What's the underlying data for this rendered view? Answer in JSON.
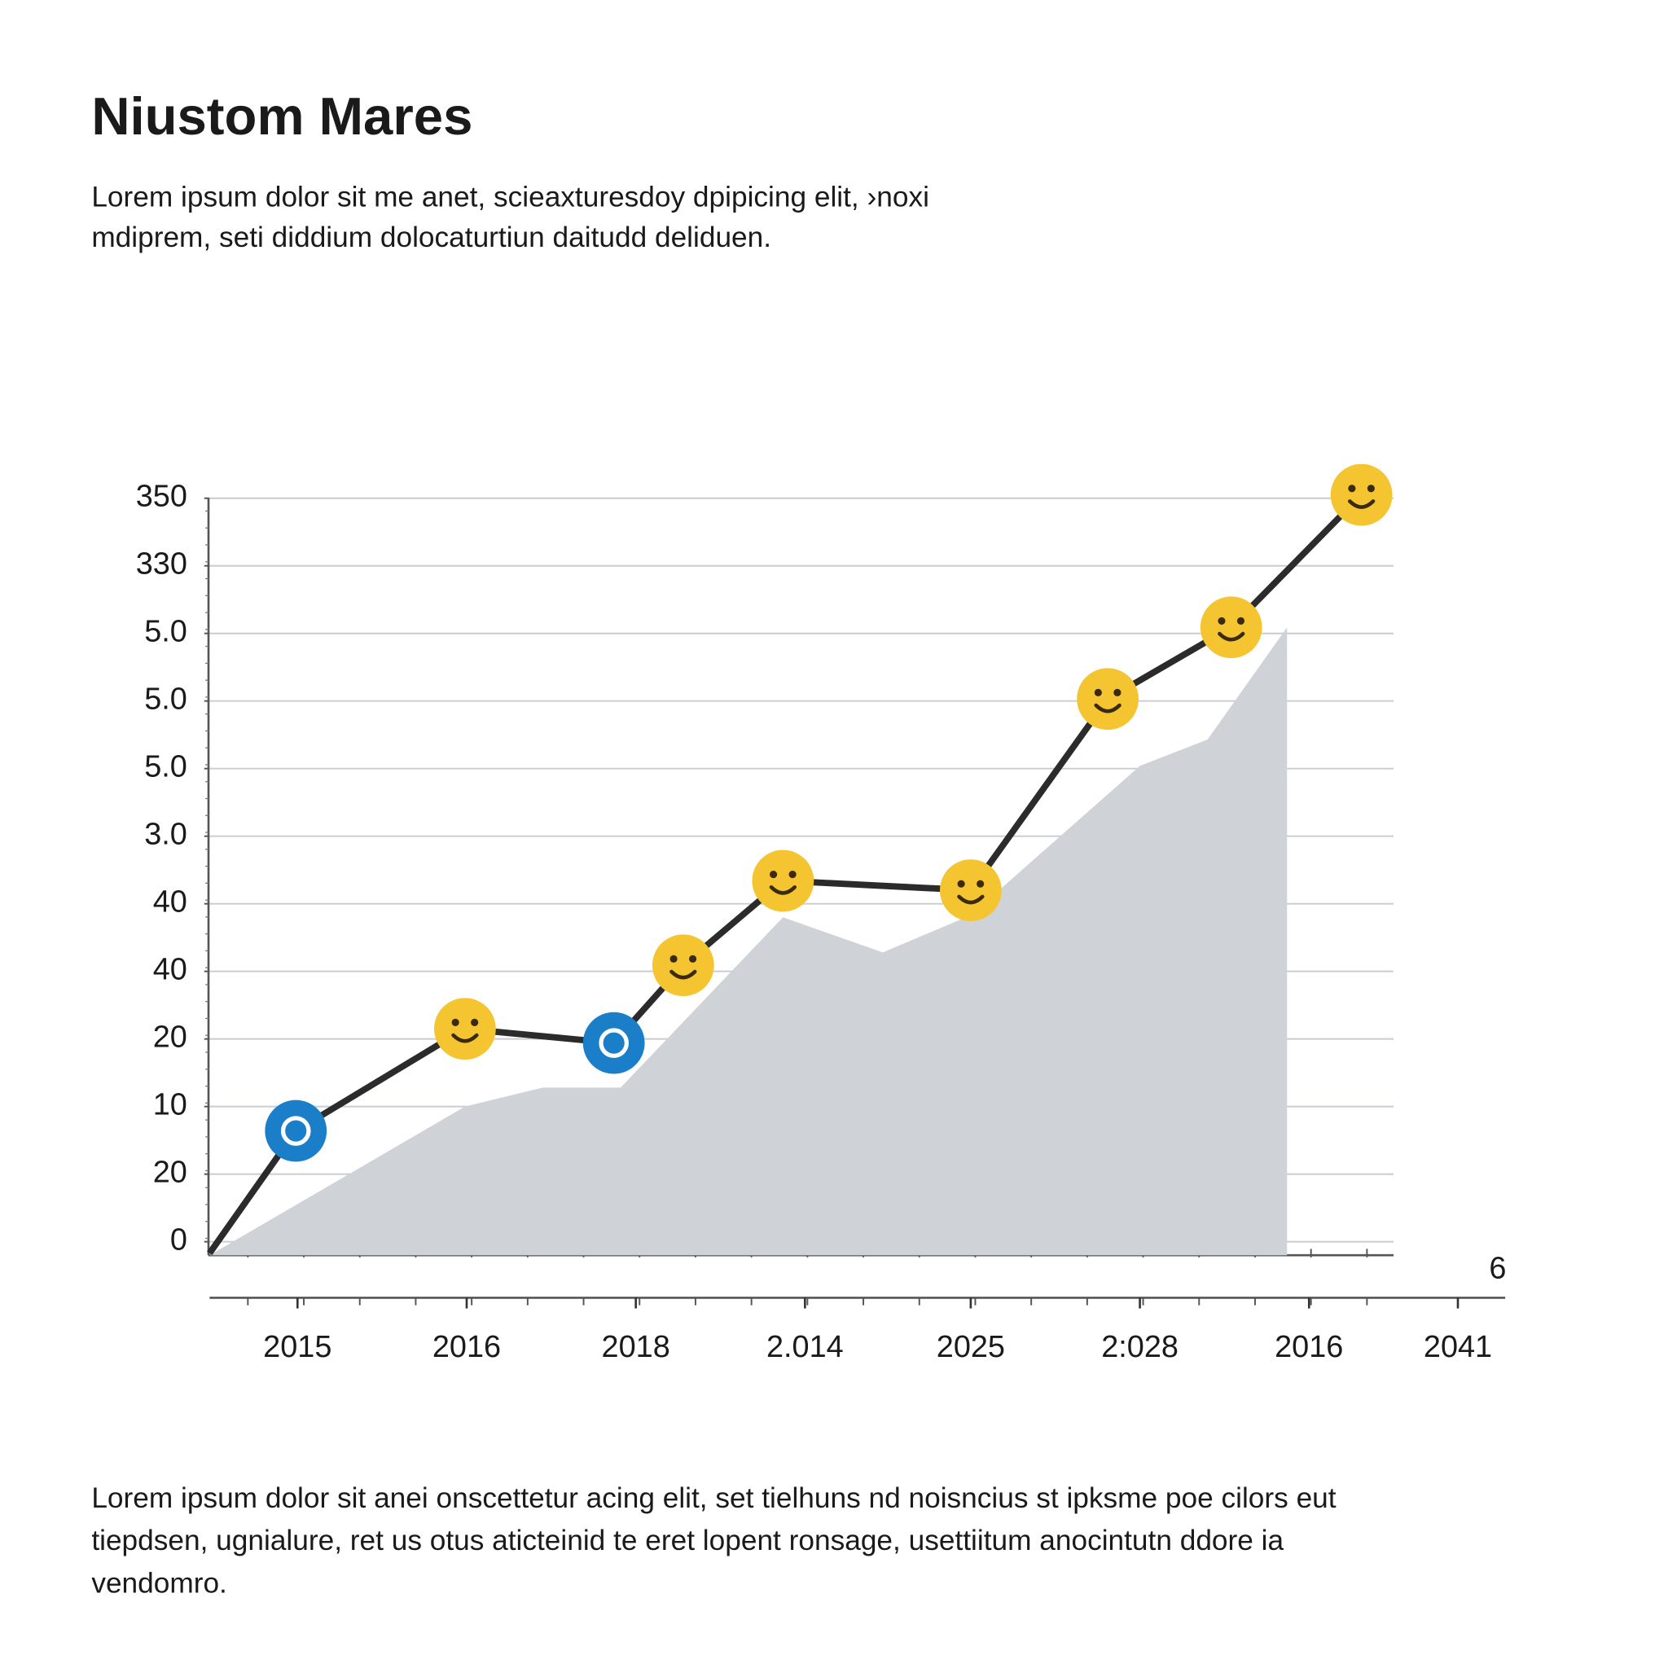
{
  "chart_data": {
    "type": "line",
    "title": "Niustom Mares",
    "subtitle_lines": [
      "Lorem ipsum dolor sit me anet, scieaxturesdoy dpipicing elit, ›noxi",
      "mdiprem, seti diddium dolocaturtiun daitudd deliduen."
    ],
    "footer_lines": [
      "Lorem ipsum dolor sit anei onscettetur acing elit, set tielhuns nd noisncius st ipksme poe cilors eut",
      "tiepdsen, ugnialure, ret us otus aticteinid te eret lopent ronsage, usettiitum anocintutn ddore ia",
      "vendomro."
    ],
    "annotation": "6",
    "xlim": [
      -0.52,
      7.14
    ],
    "xticks": [
      {
        "value": 0,
        "label": "2015"
      },
      {
        "value": 1,
        "label": "2016"
      },
      {
        "value": 2,
        "label": "2018"
      },
      {
        "value": 3,
        "label": "2.014"
      },
      {
        "value": 3.98,
        "label": "2025"
      },
      {
        "value": 4.98,
        "label": "2:028"
      },
      {
        "value": 5.98,
        "label": "2016"
      },
      {
        "value": 6.86,
        "label": "2041"
      }
    ],
    "ylim": [
      -0.2,
      11.1
    ],
    "yticks": [
      0,
      {
        "value": 1,
        "label": "20"
      },
      {
        "value": 2,
        "label": "10"
      },
      {
        "value": 3,
        "label": "20"
      },
      {
        "value": 4,
        "label": "40"
      },
      {
        "value": 5,
        "label": "40"
      },
      {
        "value": 6,
        "label": "3.0"
      },
      {
        "value": 7,
        "label": "5.0"
      },
      {
        "value": 8,
        "label": "5.0"
      },
      {
        "value": 9,
        "label": "5.0"
      },
      {
        "value": 10,
        "label": "330"
      },
      {
        "value": 11,
        "label": "350"
      }
    ],
    "grid": true,
    "series": [
      {
        "type": "area",
        "color": "#cfd3d8",
        "x": [
          -0.52,
          0.99,
          1.45,
          1.91,
          2.87,
          3.46,
          3.98,
          4.98,
          5.38,
          5.85
        ],
        "values": [
          -0.2,
          2.0,
          2.28,
          2.28,
          4.8,
          4.28,
          4.83,
          7.04,
          7.43,
          9.09
        ]
      },
      {
        "type": "line",
        "color": "#2b2b2b",
        "x": [
          -0.52,
          -0.01,
          0.99,
          1.87,
          2.28,
          2.87,
          3.98,
          4.79,
          5.52,
          6.29
        ],
        "values": [
          -0.17,
          1.64,
          3.15,
          2.94,
          4.09,
          5.34,
          5.2,
          8.03,
          9.09,
          11.05
        ],
        "marker_colors": [
          null,
          "#1a7fc8",
          "#f5c431",
          "#1a7fc8",
          "#f5c431",
          "#f5c431",
          "#f5c431",
          "#f5c431",
          "#f5c431",
          "#f5c431"
        ]
      }
    ]
  }
}
